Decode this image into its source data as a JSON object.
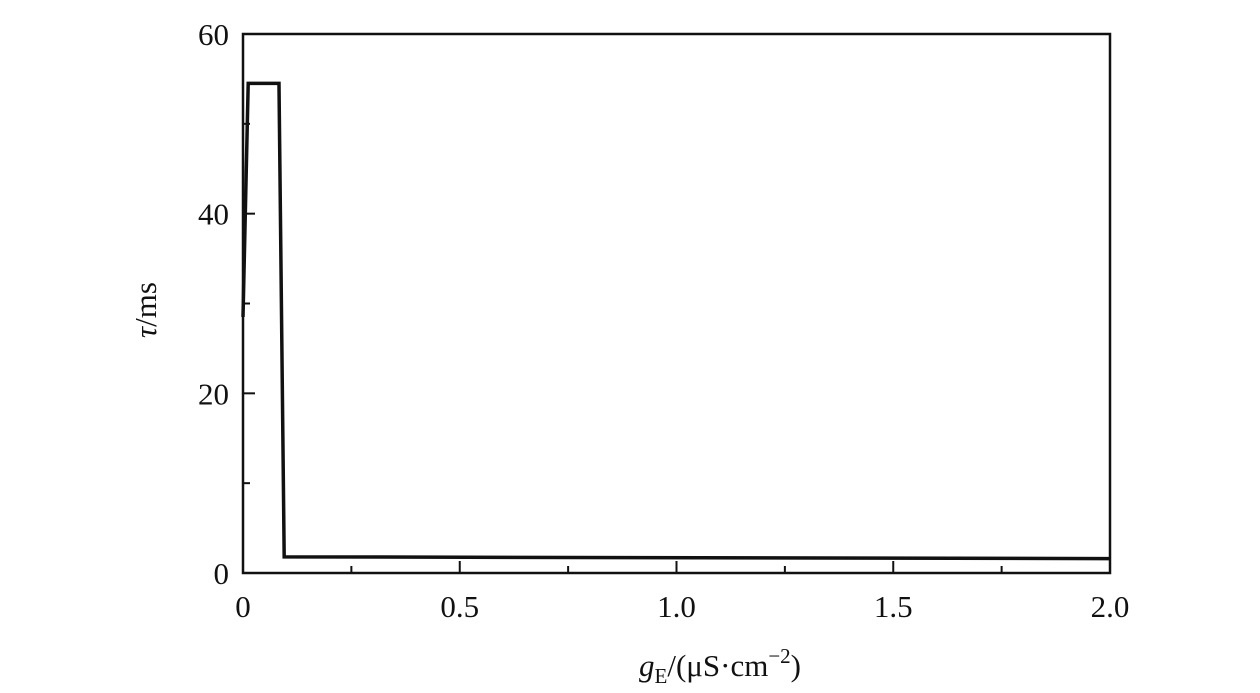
{
  "chart_data": {
    "type": "line",
    "xlabel": [
      "g",
      "E",
      "/(μS·cm",
      "−2",
      ")"
    ],
    "ylabel": [
      "τ",
      "/ms"
    ],
    "xlim": [
      0,
      2.0
    ],
    "ylim": [
      0,
      60
    ],
    "xticks": [
      0,
      0.5,
      {
        "value": 1,
        "label": "1.0"
      },
      1.5,
      {
        "value": 2,
        "label": "2.0"
      }
    ],
    "xminorticks": [
      0.25,
      0.75,
      1.25,
      1.75
    ],
    "yticks": [
      0,
      20,
      40,
      60
    ],
    "yminorticks": [
      10,
      30,
      50
    ],
    "series": [
      {
        "color": "#111111",
        "x": [
          0,
          0.012,
          0.083,
          0.095,
          2.0
        ],
        "values": [
          28.5,
          54.5,
          54.5,
          1.8,
          1.6
        ]
      }
    ]
  }
}
